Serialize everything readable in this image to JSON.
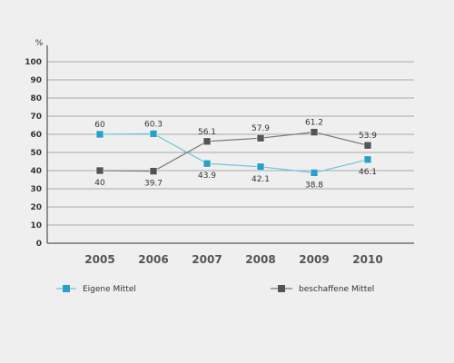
{
  "chart_data": {
    "type": "line",
    "unit_label": "%",
    "categories": [
      "2005",
      "2006",
      "2007",
      "2008",
      "2009",
      "2010"
    ],
    "ylim": [
      0,
      100
    ],
    "yticks": [
      0,
      10,
      20,
      30,
      40,
      50,
      60,
      70,
      80,
      90,
      100
    ],
    "grid": true,
    "legend_position": "bottom",
    "series": [
      {
        "name": "Eigene Mittel",
        "color": "#6fc3df",
        "marker_color": "#2b9fc7",
        "values": [
          60,
          60.3,
          43.9,
          42.1,
          38.8,
          46.1
        ],
        "labels": [
          "60",
          "60.3",
          "43.9",
          "42.1",
          "38.8",
          "46.1"
        ]
      },
      {
        "name": "beschaffene Mittel",
        "color": "#777777",
        "marker_color": "#4f5558",
        "values": [
          40,
          39.7,
          56.1,
          57.9,
          61.2,
          53.9
        ],
        "labels": [
          "40",
          "39.7",
          "56.1",
          "57.9",
          "61.2",
          "53.9"
        ]
      }
    ]
  }
}
